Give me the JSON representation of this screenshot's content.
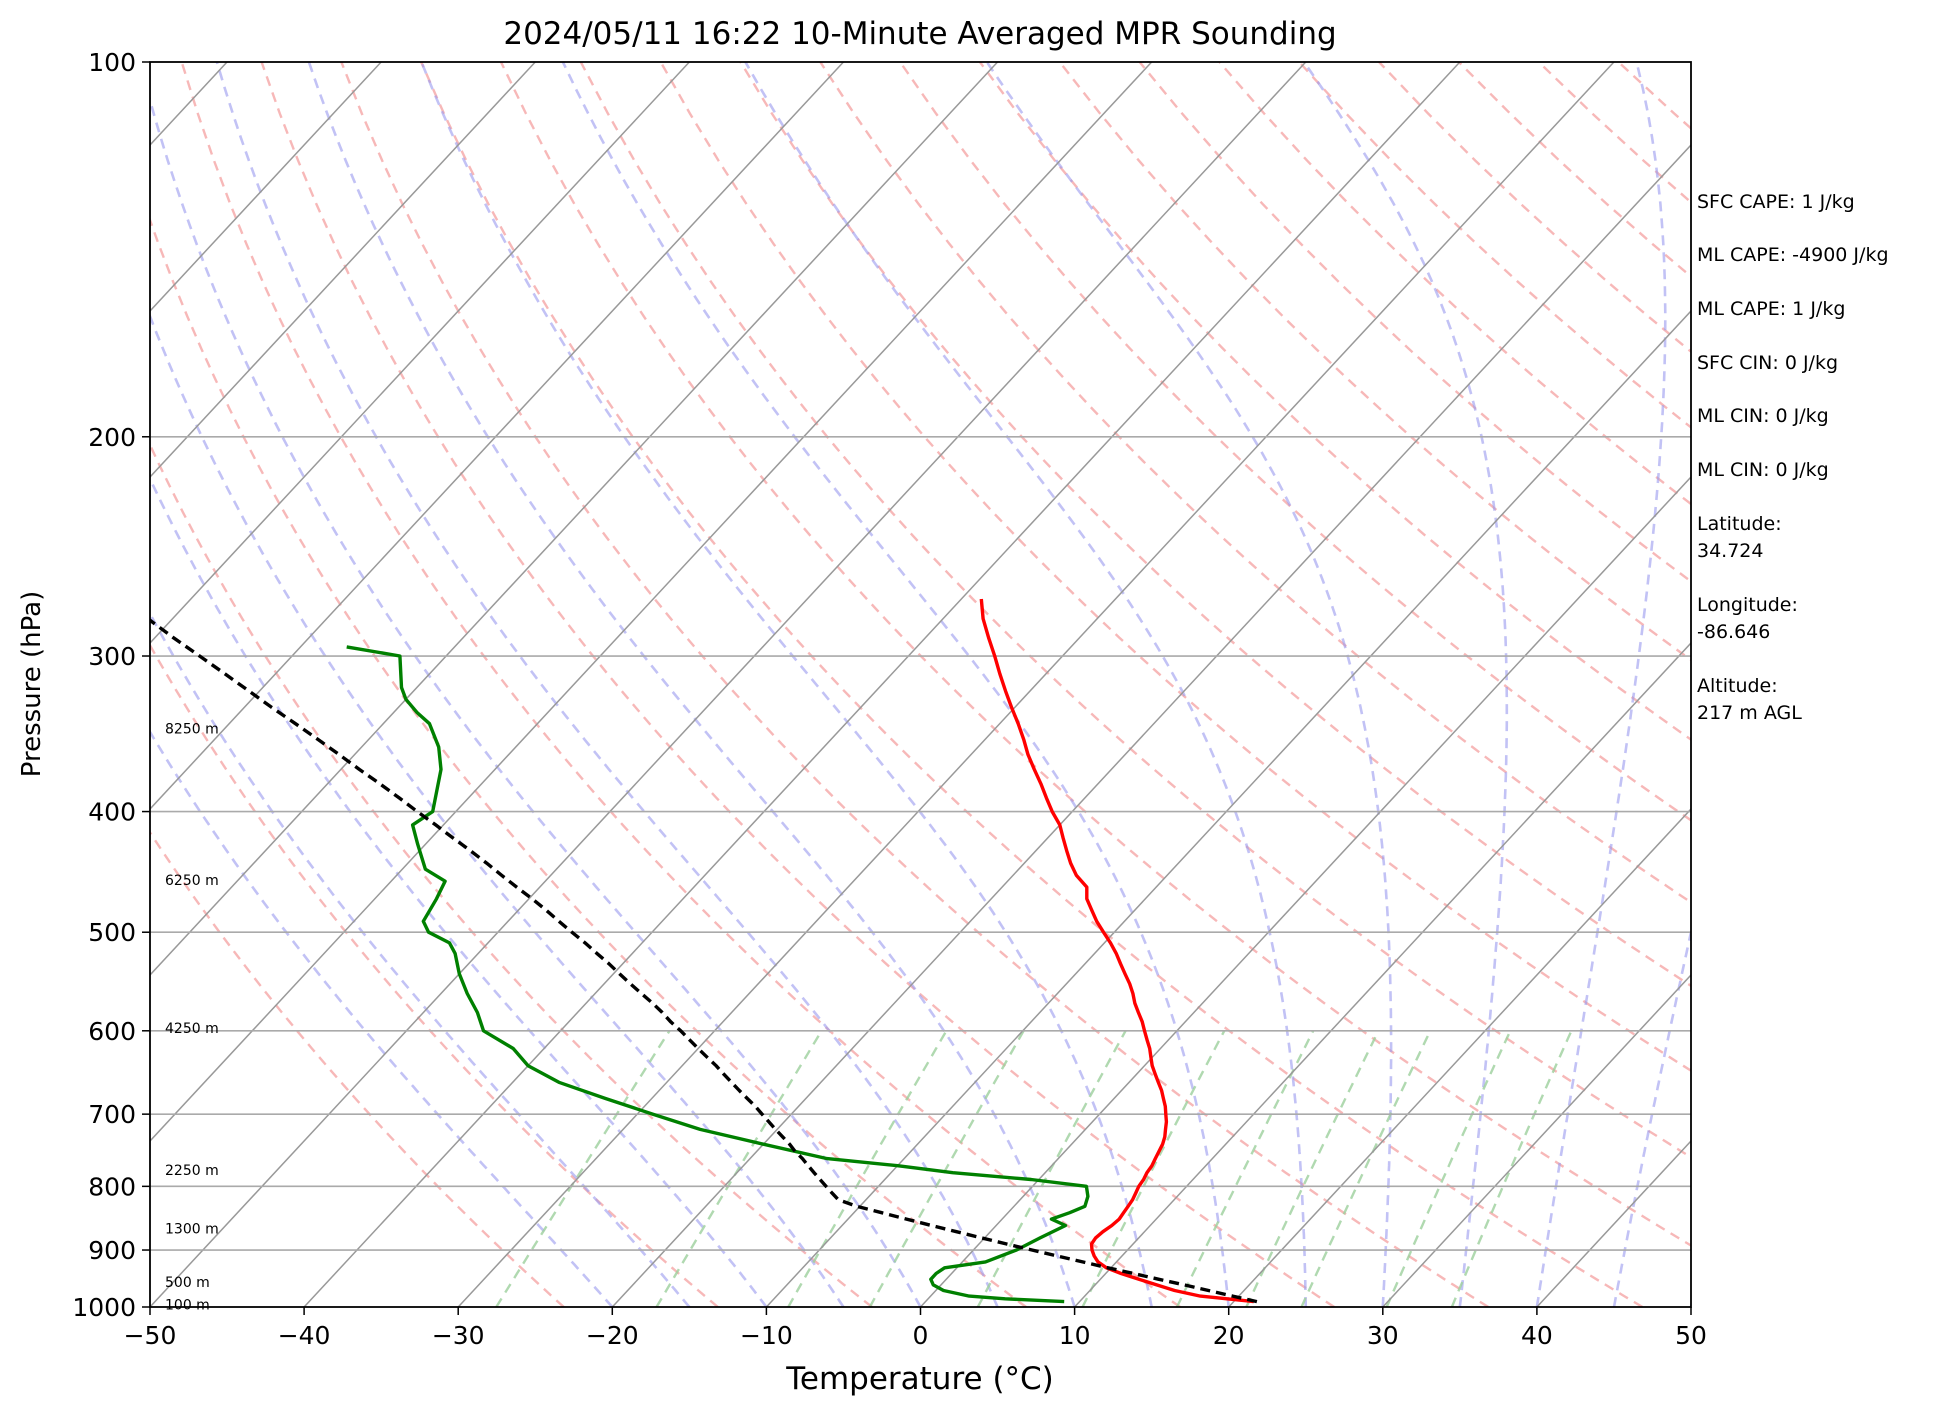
{
  "chart_data": {
    "type": "line",
    "title": "2024/05/11 16:22 10-Minute Averaged MPR Sounding",
    "xlabel": "Temperature (°C)",
    "ylabel": "Pressure (hPa)",
    "xlim": [
      -50,
      50
    ],
    "ylim": [
      1000,
      100
    ],
    "yscale": "log",
    "x_ticks": [
      "−50",
      "−40",
      "−30",
      "−20",
      "−10",
      "0",
      "10",
      "20",
      "30",
      "40",
      "50"
    ],
    "y_ticks": [
      "1000",
      "900",
      "800",
      "700",
      "600",
      "500",
      "400",
      "300",
      "200",
      "100"
    ],
    "grid": true,
    "colors": {
      "temperature": "#ff0000",
      "dewpoint": "#008000",
      "parcel": "#000000",
      "dry_adiabats": "#f4a0a0",
      "moist_adiabats": "#9999ee",
      "mixing_ratio": "#9ccf9c",
      "isotherms": "#999999",
      "isobars": "#aaaaaa"
    },
    "series": [
      {
        "key": "temperature",
        "p": [
          990,
          980,
          970,
          960,
          950,
          940,
          930,
          920,
          910,
          900,
          890,
          880,
          870,
          860,
          850,
          840,
          830,
          820,
          810,
          800,
          790,
          780,
          770,
          760,
          750,
          740,
          730,
          720,
          710,
          700,
          690,
          680,
          670,
          660,
          650,
          640,
          630,
          620,
          610,
          600,
          590,
          580,
          570,
          560,
          550,
          540,
          530,
          520,
          510,
          500,
          490,
          480,
          470,
          460,
          450,
          440,
          430,
          420,
          410,
          400,
          390,
          380,
          370,
          360,
          350,
          340,
          330,
          320,
          310,
          300,
          290,
          280,
          270
        ],
        "T": [
          21.3,
          17.5,
          15.5,
          14,
          12.5,
          11,
          9.7,
          8.8,
          8.2,
          7.7,
          7.3,
          7.2,
          7.3,
          7.5,
          7.6,
          7.5,
          7.4,
          7.3,
          7.1,
          6.9,
          6.8,
          6.6,
          6.5,
          6.3,
          6.1,
          5.9,
          5.6,
          5.2,
          4.8,
          4.3,
          3.8,
          3.2,
          2.6,
          1.9,
          1.2,
          0.5,
          -0.1,
          -0.7,
          -1.4,
          -2.1,
          -2.8,
          -3.6,
          -4.4,
          -5.1,
          -5.9,
          -6.8,
          -7.7,
          -8.6,
          -9.6,
          -10.7,
          -11.8,
          -12.8,
          -13.8,
          -14.5,
          -15.9,
          -17,
          -18,
          -19,
          -20,
          -21.3,
          -22.5,
          -23.7,
          -25,
          -26.3,
          -27.5,
          -28.8,
          -30.2,
          -31.6,
          -33,
          -34.4,
          -35.9,
          -37.4,
          -38.7
        ]
      },
      {
        "key": "dewpoint",
        "p": [
          990,
          985,
          980,
          970,
          960,
          950,
          940,
          930,
          920,
          900,
          880,
          860,
          850,
          840,
          830,
          815,
          800,
          790,
          780,
          770,
          760,
          740,
          720,
          700,
          680,
          660,
          640,
          620,
          600,
          580,
          560,
          540,
          520,
          510,
          500,
          490,
          470,
          455,
          445,
          425,
          410,
          400,
          370,
          355,
          340,
          333,
          325,
          318,
          300,
          295
        ],
        "T": [
          9,
          5,
          2.5,
          0.5,
          -0.5,
          -1,
          -1,
          -0.8,
          1.5,
          2.8,
          3.6,
          4.5,
          3.2,
          4.0,
          4.6,
          4.2,
          3.5,
          -0.5,
          -6,
          -10,
          -15,
          -20,
          -25,
          -29,
          -33,
          -37,
          -40,
          -42,
          -45,
          -46.5,
          -48.3,
          -50,
          -51.5,
          -52.5,
          -54.5,
          -55.5,
          -56,
          -56.5,
          -58.5,
          -60.5,
          -62,
          -61.5,
          -63.5,
          -65,
          -67,
          -68.5,
          -70,
          -71,
          -73,
          -77
        ]
      },
      {
        "key": "parcel",
        "p": [
          990,
          980,
          970,
          960,
          950,
          940,
          930,
          920,
          910,
          900,
          890,
          880,
          870,
          860,
          850,
          840,
          830,
          820,
          810,
          800,
          790,
          780,
          770,
          760,
          750,
          740,
          730,
          720,
          710,
          700,
          690,
          680,
          670,
          660,
          650,
          640,
          630,
          620,
          610,
          600,
          590,
          580,
          570,
          560,
          550,
          540,
          530,
          520,
          510,
          500,
          490,
          480,
          470,
          460,
          450,
          440,
          430,
          420,
          410,
          400,
          390,
          380,
          370,
          360,
          350,
          340,
          330,
          320,
          310,
          300,
          290,
          280,
          270
        ],
        "T": [
          21.5,
          19.6,
          17.7,
          15.8,
          13.8,
          11.8,
          9.8,
          7.8,
          5.8,
          3.8,
          1.8,
          -0.2,
          -2.2,
          -4.2,
          -6.2,
          -8.2,
          -10.2,
          -11.8,
          -12.6,
          -13.4,
          -14.2,
          -15.0,
          -15.8,
          -16.6,
          -17.5,
          -18.3,
          -19.2,
          -20.1,
          -21.0,
          -21.9,
          -22.8,
          -23.8,
          -24.8,
          -25.8,
          -26.8,
          -27.8,
          -28.9,
          -30.0,
          -31.1,
          -32.2,
          -33.4,
          -34.5,
          -35.7,
          -37.0,
          -38.3,
          -39.6,
          -40.9,
          -42.3,
          -43.7,
          -45.2,
          -46.7,
          -48.2,
          -49.8,
          -51.5,
          -53.2,
          -54.9,
          -56.7,
          -58.6,
          -60.5,
          -62.5,
          -64.5,
          -66.6,
          -68.8,
          -71.0,
          -73.3,
          -75.7,
          -78.2,
          -80.7,
          -83.3,
          -86.0,
          -88.8,
          -91.6,
          -94.6
        ]
      }
    ],
    "height_labels": [
      {
        "p": 995,
        "text": "100 m"
      },
      {
        "p": 955,
        "text": "500 m"
      },
      {
        "p": 865,
        "text": "1300 m"
      },
      {
        "p": 776,
        "text": "2250 m"
      },
      {
        "p": 597,
        "text": "4250 m"
      },
      {
        "p": 454,
        "text": "6250 m"
      },
      {
        "p": 343,
        "text": "8250 m"
      }
    ]
  },
  "info": {
    "sfc_cape": "SFC CAPE: 1 J/kg",
    "ml_cape_1": "ML CAPE: -4900 J/kg",
    "ml_cape_2": "ML CAPE: 1 J/kg",
    "sfc_cin": "SFC CIN: 0 J/kg",
    "ml_cin_1": "ML CIN: 0 J/kg",
    "ml_cin_2": "ML CIN: 0 J/kg",
    "latitude_label": "Latitude:",
    "latitude": "34.724",
    "longitude_label": "Longitude:",
    "longitude": "-86.646",
    "altitude_label": "Altitude:",
    "altitude": "217 m AGL"
  }
}
